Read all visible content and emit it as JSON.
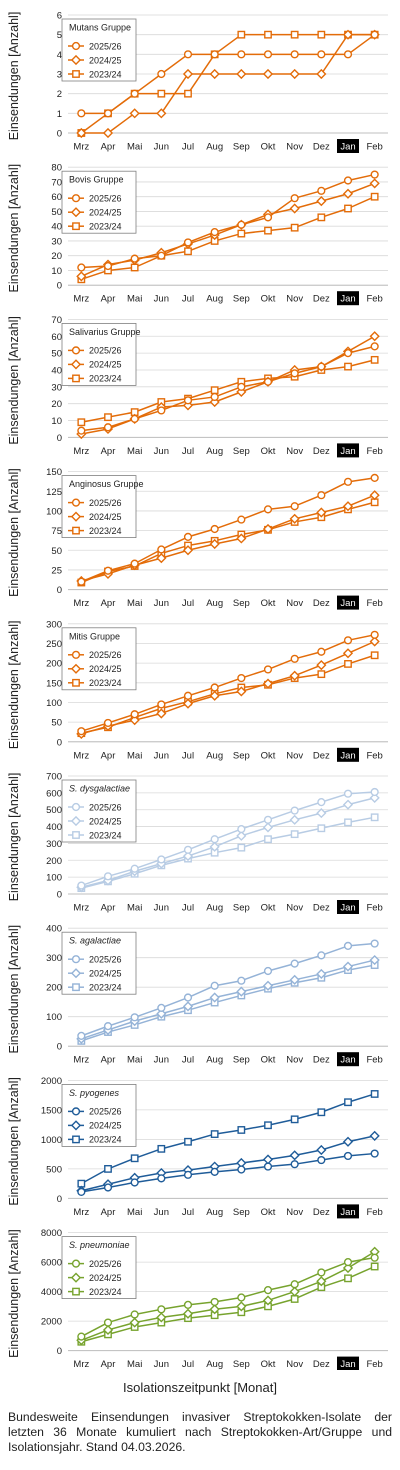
{
  "x_axis_label": "Isolationszeitpunkt [Monat]",
  "caption": "Bundesweite Einsendungen invasiver Streptokokken-Isolate der letzten 36 Monate kumuliert nach Streptokokken-Art/Gruppe und Isolationsjahr. Stand 04.03.2026.",
  "chart_data": [
    {
      "type": "line",
      "title": "Mutans Gruppe",
      "title_italic": false,
      "color": "#E36C09",
      "ylabel": "Einsendungen [Anzahl]",
      "categories": [
        "Mrz",
        "Apr",
        "Mai",
        "Jun",
        "Jul",
        "Aug",
        "Sep",
        "Okt",
        "Nov",
        "Dez",
        "Jan",
        "Feb"
      ],
      "highlight_category": "Jan",
      "ylim": [
        0,
        6
      ],
      "yticks": [
        0,
        1,
        2,
        3,
        4,
        5,
        6
      ],
      "series": [
        {
          "name": "2025/26",
          "marker": "circle",
          "values": [
            1,
            1,
            2,
            3,
            4,
            4,
            4,
            4,
            4,
            4,
            4,
            5
          ]
        },
        {
          "name": "2024/25",
          "marker": "diamond",
          "values": [
            0,
            0,
            1,
            1,
            3,
            3,
            3,
            3,
            3,
            3,
            5,
            5
          ]
        },
        {
          "name": "2023/24",
          "marker": "square",
          "values": [
            0,
            1,
            2,
            2,
            2,
            4,
            5,
            5,
            5,
            5,
            5,
            5
          ]
        }
      ]
    },
    {
      "type": "line",
      "title": "Bovis Gruppe",
      "title_italic": false,
      "color": "#E36C09",
      "ylabel": "Einsendungen [Anzahl]",
      "categories": [
        "Mrz",
        "Apr",
        "Mai",
        "Jun",
        "Jul",
        "Aug",
        "Sep",
        "Okt",
        "Nov",
        "Dez",
        "Jan",
        "Feb"
      ],
      "highlight_category": "Jan",
      "ylim": [
        0,
        80
      ],
      "yticks": [
        0,
        10,
        20,
        30,
        40,
        50,
        60,
        70,
        80
      ],
      "series": [
        {
          "name": "2025/26",
          "marker": "circle",
          "values": [
            12,
            13,
            18,
            20,
            29,
            36,
            41,
            46,
            59,
            64,
            71,
            75
          ]
        },
        {
          "name": "2024/25",
          "marker": "diamond",
          "values": [
            6,
            14,
            17,
            22,
            28,
            34,
            41,
            48,
            52,
            57,
            62,
            69
          ]
        },
        {
          "name": "2023/24",
          "marker": "square",
          "values": [
            4,
            10,
            12,
            20,
            23,
            30,
            35,
            37,
            39,
            46,
            52,
            60
          ]
        }
      ]
    },
    {
      "type": "line",
      "title": "Salivarius Gruppe",
      "title_italic": false,
      "color": "#E36C09",
      "ylabel": "Einsendungen [Anzahl]",
      "categories": [
        "Mrz",
        "Apr",
        "Mai",
        "Jun",
        "Jul",
        "Aug",
        "Sep",
        "Okt",
        "Nov",
        "Dez",
        "Jan",
        "Feb"
      ],
      "highlight_category": "Jan",
      "ylim": [
        0,
        70
      ],
      "yticks": [
        0,
        10,
        20,
        30,
        40,
        50,
        60,
        70
      ],
      "series": [
        {
          "name": "2025/26",
          "marker": "circle",
          "values": [
            4,
            6,
            11,
            16,
            22,
            24,
            30,
            33,
            38,
            42,
            50,
            54
          ]
        },
        {
          "name": "2024/25",
          "marker": "diamond",
          "values": [
            2,
            5,
            11,
            18,
            19,
            21,
            27,
            33,
            40,
            42,
            51,
            60
          ]
        },
        {
          "name": "2023/24",
          "marker": "square",
          "values": [
            9,
            12,
            15,
            21,
            23,
            28,
            33,
            35,
            36,
            40,
            42,
            46
          ]
        }
      ]
    },
    {
      "type": "line",
      "title": "Anginosus Gruppe",
      "title_italic": false,
      "color": "#E36C09",
      "ylabel": "Einsendungen [Anzahl]",
      "categories": [
        "Mrz",
        "Apr",
        "Mai",
        "Jun",
        "Jul",
        "Aug",
        "Sep",
        "Okt",
        "Nov",
        "Dez",
        "Jan",
        "Feb"
      ],
      "highlight_category": "Jan",
      "ylim": [
        0,
        150
      ],
      "yticks": [
        0,
        25,
        50,
        75,
        100,
        125,
        150
      ],
      "series": [
        {
          "name": "2025/26",
          "marker": "circle",
          "values": [
            10,
            24,
            33,
            51,
            67,
            77,
            89,
            102,
            106,
            120,
            137,
            142
          ]
        },
        {
          "name": "2024/25",
          "marker": "diamond",
          "values": [
            11,
            20,
            31,
            40,
            50,
            58,
            65,
            77,
            90,
            98,
            106,
            120
          ]
        },
        {
          "name": "2023/24",
          "marker": "square",
          "values": [
            9,
            23,
            30,
            46,
            56,
            62,
            70,
            76,
            86,
            92,
            102,
            111
          ]
        }
      ]
    },
    {
      "type": "line",
      "title": "Mitis Gruppe",
      "title_italic": false,
      "color": "#E36C09",
      "ylabel": "Einsendungen [Anzahl]",
      "categories": [
        "Mrz",
        "Apr",
        "Mai",
        "Jun",
        "Jul",
        "Aug",
        "Sep",
        "Okt",
        "Nov",
        "Dez",
        "Jan",
        "Feb"
      ],
      "highlight_category": "Jan",
      "ylim": [
        0,
        300
      ],
      "yticks": [
        0,
        50,
        100,
        150,
        200,
        250,
        300
      ],
      "series": [
        {
          "name": "2025/26",
          "marker": "circle",
          "values": [
            27,
            48,
            70,
            95,
            117,
            138,
            162,
            184,
            211,
            229,
            258,
            272
          ]
        },
        {
          "name": "2024/25",
          "marker": "diamond",
          "values": [
            20,
            40,
            55,
            72,
            97,
            117,
            128,
            148,
            168,
            195,
            225,
            255
          ]
        },
        {
          "name": "2023/24",
          "marker": "square",
          "values": [
            22,
            37,
            62,
            85,
            102,
            122,
            138,
            145,
            162,
            172,
            198,
            220
          ]
        }
      ]
    },
    {
      "type": "line",
      "title": "S. dysgalactiae",
      "title_italic": true,
      "color": "#B8CCE4",
      "ylabel": "Einsendungen [Anzahl]",
      "categories": [
        "Mrz",
        "Apr",
        "Mai",
        "Jun",
        "Jul",
        "Aug",
        "Sep",
        "Okt",
        "Nov",
        "Dez",
        "Jan",
        "Feb"
      ],
      "highlight_category": "Jan",
      "ylim": [
        0,
        700
      ],
      "yticks": [
        0,
        100,
        200,
        300,
        400,
        500,
        600,
        700
      ],
      "series": [
        {
          "name": "2025/26",
          "marker": "circle",
          "values": [
            50,
            105,
            150,
            205,
            262,
            325,
            385,
            440,
            495,
            545,
            595,
            605
          ]
        },
        {
          "name": "2024/25",
          "marker": "diamond",
          "values": [
            40,
            80,
            135,
            180,
            225,
            280,
            345,
            395,
            440,
            480,
            530,
            570
          ]
        },
        {
          "name": "2023/24",
          "marker": "square",
          "values": [
            35,
            75,
            120,
            170,
            210,
            245,
            275,
            325,
            355,
            390,
            425,
            455
          ]
        }
      ]
    },
    {
      "type": "line",
      "title": "S. agalactiae",
      "title_italic": true,
      "color": "#95B3D7",
      "ylabel": "Einsendungen [Anzahl]",
      "categories": [
        "Mrz",
        "Apr",
        "Mai",
        "Jun",
        "Jul",
        "Aug",
        "Sep",
        "Okt",
        "Nov",
        "Dez",
        "Jan",
        "Feb"
      ],
      "highlight_category": "Jan",
      "ylim": [
        0,
        400
      ],
      "yticks": [
        0,
        100,
        200,
        300,
        400
      ],
      "series": [
        {
          "name": "2025/26",
          "marker": "circle",
          "values": [
            35,
            68,
            98,
            130,
            165,
            205,
            222,
            255,
            280,
            308,
            340,
            348
          ]
        },
        {
          "name": "2024/25",
          "marker": "diamond",
          "values": [
            25,
            55,
            85,
            110,
            135,
            165,
            185,
            205,
            225,
            245,
            270,
            292
          ]
        },
        {
          "name": "2023/24",
          "marker": "square",
          "values": [
            18,
            48,
            72,
            100,
            122,
            148,
            172,
            195,
            215,
            232,
            258,
            275
          ]
        }
      ]
    },
    {
      "type": "line",
      "title": "S. pyogenes",
      "title_italic": true,
      "color": "#1F5C99",
      "ylabel": "Einsendungen [Anzahl]",
      "categories": [
        "Mrz",
        "Apr",
        "Mai",
        "Jun",
        "Jul",
        "Aug",
        "Sep",
        "Okt",
        "Nov",
        "Dez",
        "Jan",
        "Feb"
      ],
      "highlight_category": "Jan",
      "ylim": [
        0,
        2000
      ],
      "yticks": [
        0,
        500,
        1000,
        1500,
        2000
      ],
      "series": [
        {
          "name": "2025/26",
          "marker": "circle",
          "values": [
            110,
            185,
            270,
            340,
            400,
            450,
            490,
            540,
            580,
            650,
            720,
            760
          ]
        },
        {
          "name": "2024/25",
          "marker": "diamond",
          "values": [
            130,
            240,
            350,
            430,
            480,
            540,
            600,
            660,
            730,
            820,
            960,
            1060
          ]
        },
        {
          "name": "2023/24",
          "marker": "square",
          "values": [
            250,
            500,
            680,
            840,
            960,
            1090,
            1160,
            1240,
            1340,
            1460,
            1630,
            1770
          ]
        }
      ]
    },
    {
      "type": "line",
      "title": "S. pneumoniae",
      "title_italic": true,
      "color": "#77A32E",
      "ylabel": "Einsendungen [Anzahl]",
      "categories": [
        "Mrz",
        "Apr",
        "Mai",
        "Jun",
        "Jul",
        "Aug",
        "Sep",
        "Okt",
        "Nov",
        "Dez",
        "Jan",
        "Feb"
      ],
      "highlight_category": "Jan",
      "ylim": [
        0,
        8000
      ],
      "yticks": [
        0,
        2000,
        4000,
        6000,
        8000
      ],
      "series": [
        {
          "name": "2025/26",
          "marker": "circle",
          "values": [
            950,
            1900,
            2450,
            2800,
            3100,
            3300,
            3600,
            4100,
            4500,
            5300,
            6000,
            6300
          ]
        },
        {
          "name": "2024/25",
          "marker": "diamond",
          "values": [
            700,
            1400,
            1900,
            2250,
            2500,
            2800,
            3000,
            3400,
            4000,
            4700,
            5600,
            6700
          ]
        },
        {
          "name": "2023/24",
          "marker": "square",
          "values": [
            600,
            1100,
            1600,
            1900,
            2200,
            2400,
            2600,
            3000,
            3500,
            4300,
            4900,
            5700
          ]
        }
      ]
    }
  ]
}
